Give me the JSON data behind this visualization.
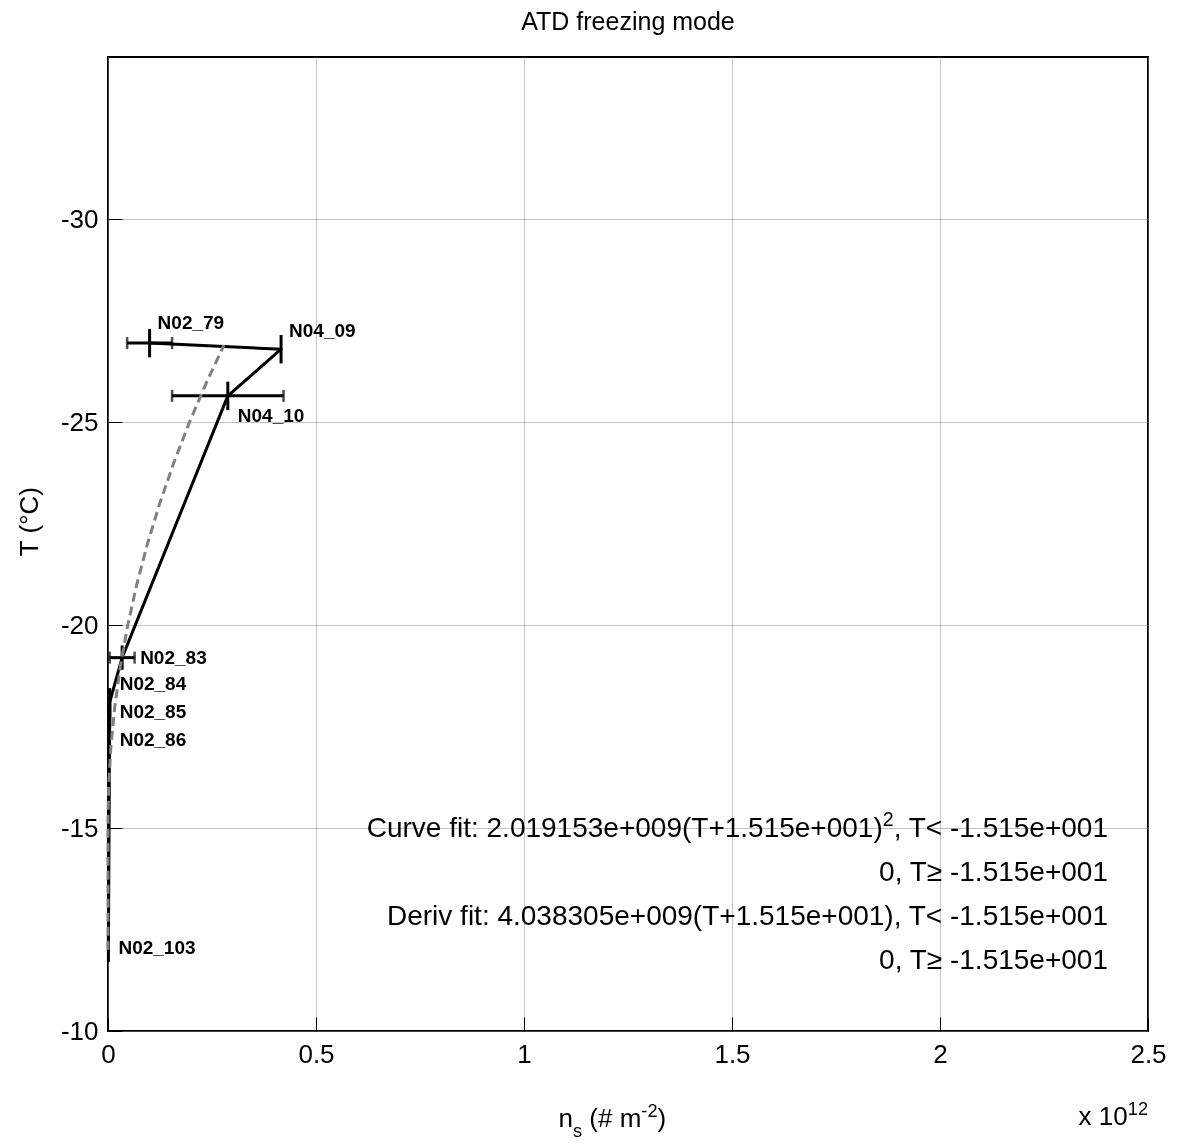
{
  "chart_data": {
    "type": "line",
    "title": "ATD freezing mode",
    "xlabel": "n$_{s}$ (# m$^{-2}$)",
    "ylabel": "T (°C)",
    "xlim": [
      0,
      2.5
    ],
    "xticks": [
      0,
      0.5,
      1,
      1.5,
      2,
      2.5
    ],
    "ylim": [
      -10,
      -34
    ],
    "yticks": [
      -10,
      -15,
      -20,
      -25,
      -30
    ],
    "grid": true,
    "series": [
      {
        "color": "#000000",
        "line_style": "solid",
        "x": [
          0.001,
          0.004,
          0.004,
          0.004,
          0.034,
          0.288,
          0.416,
          0.1
        ],
        "values": [
          -12.05,
          -17.8,
          -17.95,
          -18.1,
          -19.2,
          -25.65,
          -26.8,
          -26.95
        ],
        "errors": [
          0.35,
          0.35,
          0.35,
          0.35,
          0.3,
          0.35,
          0.35,
          0.35
        ],
        "xerrors": [
          null,
          null,
          null,
          null,
          0.03,
          0.134,
          null,
          0.054
        ]
      },
      {
        "color": "#808080",
        "line_style": "dashed",
        "x": [
          0,
          0,
          0.0015,
          0.0069,
          0.0164,
          0.0299,
          0.0475,
          0.0691,
          0.0947,
          0.1244,
          0.1581,
          0.1958,
          0.2376,
          0.2788
        ],
        "values": [
          -12,
          -15.15,
          -16,
          -17,
          -18,
          -19,
          -20,
          -21,
          -22,
          -23,
          -24,
          -25,
          -26,
          -26.9
        ]
      }
    ],
    "annotations": [
      {
        "text": "N02_103",
        "x": 0.001,
        "y": -12.05
      },
      {
        "text": "N02_86",
        "x": 0.004,
        "y": -17.8
      },
      {
        "text": "N02_85",
        "x": 0.004,
        "y": -17.95
      },
      {
        "text": "N02_84",
        "x": 0.004,
        "y": -18.1
      },
      {
        "text": "N02_83",
        "x": 0.034,
        "y": -19.2
      },
      {
        "text": "N04_10",
        "x": 0.288,
        "y": -25.65
      },
      {
        "text": "N04_09",
        "x": 0.416,
        "y": -26.8
      },
      {
        "text": "N02_79",
        "x": 0.1,
        "y": -26.95
      },
      "Curve fit: 2.019153e+009(T+1.515e+001)$^{2}$, T< -1.515e+001",
      "0, T≥ -1.515e+001",
      "Deriv fit: 4.038305e+009(T+1.515e+001), T< -1.515e+001",
      "0, T≥ -1.515e+001",
      "x 10$^{12}$"
    ]
  }
}
